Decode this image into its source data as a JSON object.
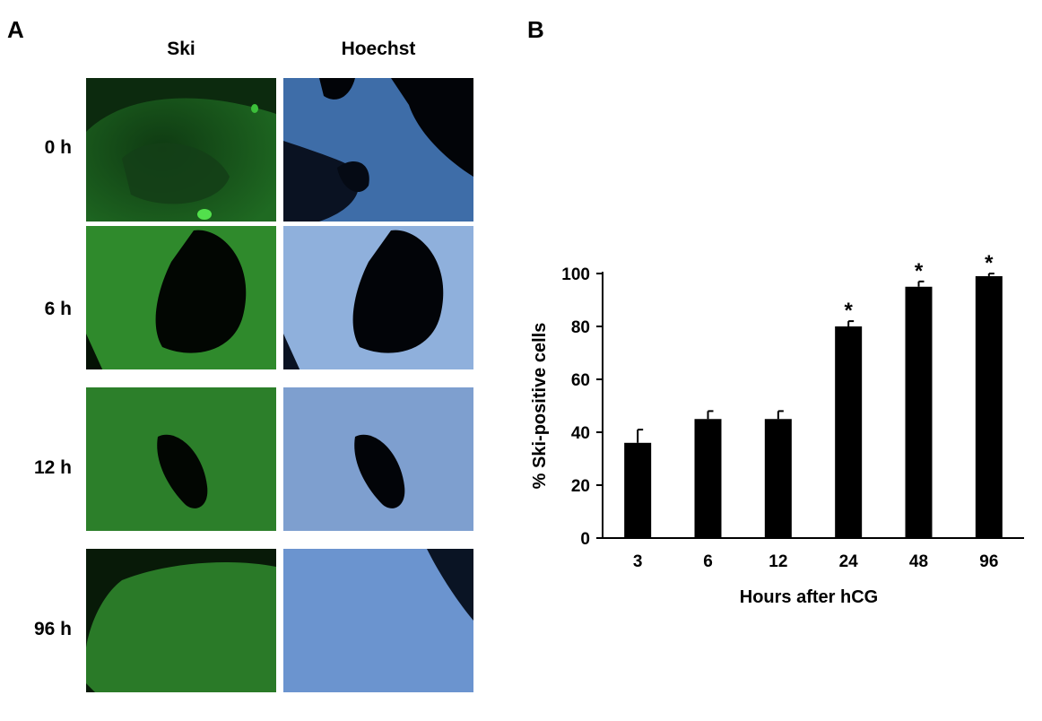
{
  "panel_a": {
    "letter": "A",
    "columns": [
      "Ski",
      "Hoechst"
    ],
    "rows": [
      "0 h",
      "6 h",
      "12 h",
      "96 h"
    ]
  },
  "panel_b": {
    "letter": "B"
  },
  "colors": {
    "ski_stain": "#2f9a2c",
    "hoechst_stain": "#6f9bd8",
    "bar": "#000000"
  },
  "chart_data": {
    "type": "bar",
    "categories": [
      "3",
      "6",
      "12",
      "24",
      "48",
      "96"
    ],
    "values": [
      36,
      45,
      45,
      80,
      95,
      99
    ],
    "errors": [
      5,
      3,
      3,
      2,
      2,
      1
    ],
    "significance": [
      "",
      "",
      "",
      "*",
      "*",
      "*"
    ],
    "xlabel": "Hours after hCG",
    "ylabel": "% Ski-positive cells",
    "yticks": [
      0,
      20,
      40,
      60,
      80,
      100
    ],
    "ylim": [
      0,
      100
    ],
    "grid": false,
    "legend": "none"
  }
}
